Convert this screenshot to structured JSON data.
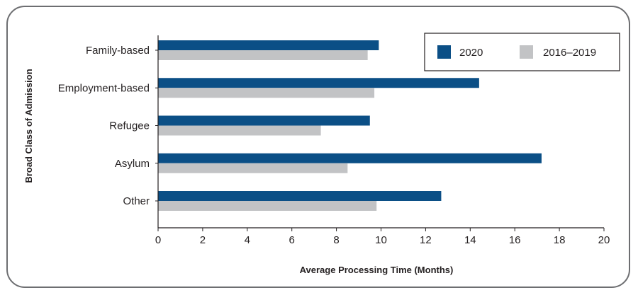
{
  "chart_data": {
    "type": "bar",
    "orientation": "horizontal",
    "categories": [
      "Family-based",
      "Employment-based",
      "Refugee",
      "Asylum",
      "Other"
    ],
    "series": [
      {
        "name": "2020",
        "color": "#0b4f86",
        "values": [
          9.9,
          14.4,
          9.5,
          17.2,
          12.7
        ]
      },
      {
        "name": "2016–2019",
        "color": "#c2c3c5",
        "values": [
          9.4,
          9.7,
          7.3,
          8.5,
          9.8
        ]
      }
    ],
    "xlabel": "Average Processing Time (Months)",
    "ylabel": "Broad Class of Admission",
    "xlim": [
      0,
      20
    ],
    "xticks": [
      "0",
      "2",
      "4",
      "6",
      "8",
      "10",
      "12",
      "14",
      "16",
      "18",
      "20"
    ],
    "grid": false,
    "legend_position": "top-right"
  }
}
